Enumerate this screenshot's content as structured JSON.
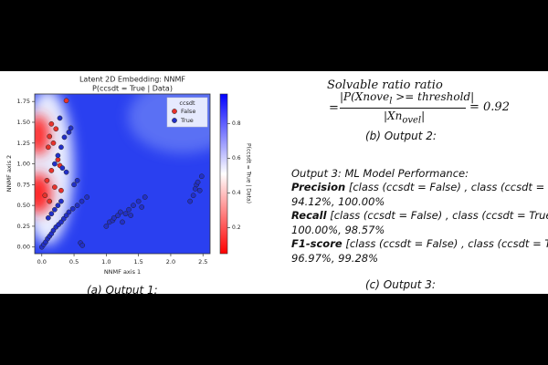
{
  "chart_data": {
    "type": "scatter",
    "title": "Latent 2D Embedding: NNMF",
    "subtitle": "P(ccsdt = True | Data)",
    "x_label": "NNMF axis 1",
    "y_label": "NNMF axis 2",
    "xlim": [
      -0.11,
      2.61
    ],
    "ylim": [
      -0.08,
      1.84
    ],
    "xticks": [
      {
        "value": 0,
        "label": "0.0"
      },
      {
        "value": 0.5,
        "label": "0.5"
      },
      {
        "value": 1,
        "label": "1.0"
      },
      {
        "value": 1.5,
        "label": "1.5"
      },
      {
        "value": 2,
        "label": "2.0"
      },
      {
        "value": 2.5,
        "label": "2.5"
      }
    ],
    "yticks": [
      {
        "value": 0,
        "label": "0.00"
      },
      {
        "value": 0.25,
        "label": "0.25"
      },
      {
        "value": 0.5,
        "label": "0.50"
      },
      {
        "value": 0.75,
        "label": "0.75"
      },
      {
        "value": 1,
        "label": "1.00"
      },
      {
        "value": 1.25,
        "label": "1.25"
      },
      {
        "value": 1.5,
        "label": "1.50"
      },
      {
        "value": 1.75,
        "label": "1.75"
      }
    ],
    "legend_title": "ccsdt",
    "legend_position": "upper right",
    "colorbar_label": "P(ccsdt = True | Data)",
    "colorbar_lim": [
      0.05,
      0.97
    ],
    "colorbar_ticks": [
      0.2,
      0.4,
      0.6,
      0.8
    ],
    "series": [
      {
        "name": "False",
        "color": "#e8322b",
        "x": [
          0.38,
          0.15,
          0.22,
          0.12,
          0.18,
          0.1,
          0.25,
          0.28,
          0.15,
          0.08,
          0.2,
          0.3,
          0.05,
          0.12
        ],
        "values": [
          1.76,
          1.48,
          1.42,
          1.33,
          1.25,
          1.2,
          1.05,
          0.98,
          0.92,
          0.8,
          0.72,
          0.68,
          0.62,
          0.55
        ]
      },
      {
        "name": "True",
        "color": "#2230c8",
        "x": [
          0.28,
          0.35,
          0.42,
          0.45,
          0.3,
          0.25,
          0.2,
          0.32,
          0.38,
          0.0,
          0.03,
          0.06,
          0.09,
          0.12,
          0.15,
          0.18,
          0.22,
          0.26,
          0.3,
          0.34,
          0.38,
          0.42,
          0.48,
          0.55,
          0.62,
          0.7,
          0.1,
          0.15,
          0.2,
          0.25,
          0.3,
          0.6,
          0.63,
          0.5,
          0.55,
          1.0,
          1.05,
          1.1,
          1.12,
          1.18,
          1.22,
          1.25,
          1.3,
          1.35,
          1.38,
          1.42,
          1.5,
          1.55,
          1.6,
          2.3,
          2.35,
          2.38,
          2.4,
          2.45,
          2.48,
          2.42
        ],
        "values": [
          1.55,
          1.32,
          1.38,
          1.43,
          1.2,
          1.1,
          1.0,
          0.95,
          0.9,
          0.0,
          0.03,
          0.06,
          0.1,
          0.13,
          0.16,
          0.2,
          0.24,
          0.27,
          0.3,
          0.34,
          0.38,
          0.42,
          0.46,
          0.5,
          0.55,
          0.6,
          0.35,
          0.4,
          0.45,
          0.5,
          0.55,
          0.05,
          0.02,
          0.75,
          0.8,
          0.25,
          0.3,
          0.32,
          0.35,
          0.38,
          0.42,
          0.3,
          0.4,
          0.45,
          0.38,
          0.5,
          0.55,
          0.48,
          0.6,
          0.55,
          0.62,
          0.7,
          0.75,
          0.68,
          0.85,
          0.78
        ]
      }
    ]
  },
  "captions": {
    "a": "(a) Output 1:",
    "b": "(b) Output 2:",
    "c": "(c) Output 3:"
  },
  "output2": {
    "title": "Solvable ratio ratio",
    "equals": "=",
    "numerator_main": "|P(Xnove",
    "numerator_sub": "l",
    "numerator_rest": " >=  threshold|",
    "denominator_main": "|Xn",
    "denominator_sub": "ovel",
    "denominator_rest": "|",
    "result": "= 0.92"
  },
  "output3": {
    "title": "Output 3: ML Model  Performance:",
    "metrics": [
      {
        "label": "Precision",
        "classes": " [class (ccsdt = False) , class (ccsdt = True) ]:",
        "values": "94.12%,  100.00%"
      },
      {
        "label": "Recall",
        "classes": " [class (ccsdt = False) , class (ccsdt = True) ]:",
        "values": "100.00%,  98.57%"
      },
      {
        "label": "F1-score",
        "classes": " [class (ccsdt = False) , class (ccsdt = True) ]:",
        "values": "96.97%,  99.28%"
      }
    ]
  }
}
